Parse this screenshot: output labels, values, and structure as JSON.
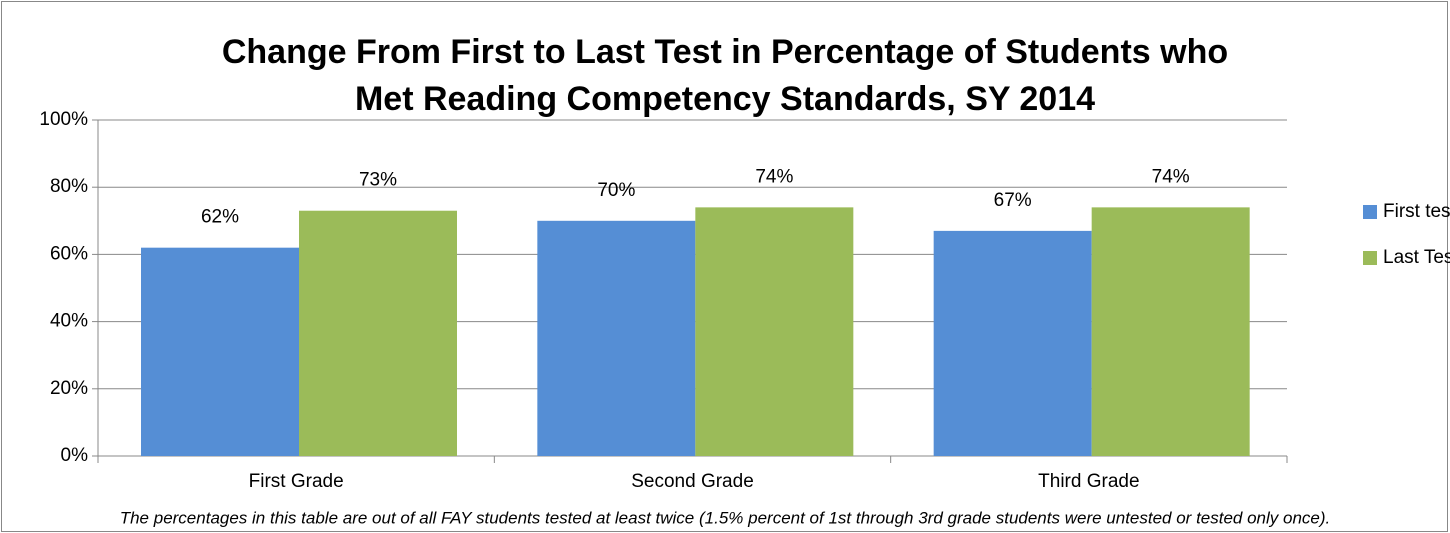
{
  "chart_data": {
    "type": "bar",
    "title": [
      "Change From First to Last Test in Percentage of Students who",
      "Met Reading Competency Standards, SY 2014"
    ],
    "categories": [
      "First Grade",
      "Second Grade",
      "Third Grade"
    ],
    "series": [
      {
        "name": "First test",
        "color": "#558ed5",
        "values": [
          62,
          70,
          67
        ],
        "value_labels": [
          "62%",
          "70%",
          "67%"
        ]
      },
      {
        "name": "Last Test",
        "color": "#9bbb59",
        "values": [
          73,
          74,
          74
        ],
        "value_labels": [
          "73%",
          "74%",
          "74%"
        ]
      }
    ],
    "ylim": [
      0,
      100
    ],
    "yticks": [
      {
        "value": 0,
        "label": "0%"
      },
      {
        "value": 20,
        "label": "20%"
      },
      {
        "value": 40,
        "label": "40%"
      },
      {
        "value": 60,
        "label": "60%"
      },
      {
        "value": 80,
        "label": "80%"
      },
      {
        "value": 100,
        "label": "100%"
      }
    ],
    "grid": true,
    "legend": "right",
    "note": "The percentages in this table are out of all FAY students tested at least twice (1.5% percent of 1st through 3rd grade students were untested or tested only once)."
  }
}
